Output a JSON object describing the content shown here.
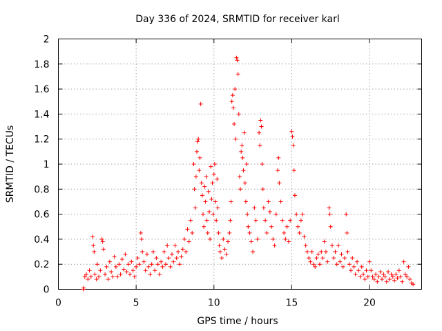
{
  "chart_data": {
    "type": "scatter",
    "title": "Day 336 of 2024, SRMTID for receiver karl",
    "xlabel": "GPS time / hours",
    "ylabel": "SRMTID / TECUs",
    "xlim": [
      0,
      23.35
    ],
    "ylim": [
      0,
      2
    ],
    "xticks": [
      0,
      5,
      10,
      15,
      20
    ],
    "xtick_labels": [
      "0",
      "5",
      "10",
      "15",
      "20"
    ],
    "yticks": [
      0,
      0.2,
      0.4,
      0.6,
      0.8,
      1,
      1.2,
      1.4,
      1.6,
      1.8,
      2
    ],
    "ytick_labels": [
      "0",
      "0.2",
      "0.4",
      "0.6",
      "0.8",
      "1",
      "1.2",
      "1.4",
      "1.6",
      "1.8",
      "2"
    ],
    "grid": true,
    "marker": "+",
    "color": "#ff0000",
    "series": [
      {
        "name": "SRMTID",
        "points": [
          [
            1.6,
            0.0
          ],
          [
            1.62,
            0.01
          ],
          [
            1.7,
            0.1
          ],
          [
            1.8,
            0.12
          ],
          [
            1.9,
            0.08
          ],
          [
            2.0,
            0.15
          ],
          [
            2.1,
            0.1
          ],
          [
            2.2,
            0.42
          ],
          [
            2.25,
            0.35
          ],
          [
            2.3,
            0.3
          ],
          [
            2.35,
            0.12
          ],
          [
            2.45,
            0.08
          ],
          [
            2.5,
            0.2
          ],
          [
            2.6,
            0.1
          ],
          [
            2.7,
            0.15
          ],
          [
            2.8,
            0.4
          ],
          [
            2.85,
            0.38
          ],
          [
            2.9,
            0.32
          ],
          [
            3.0,
            0.12
          ],
          [
            3.1,
            0.18
          ],
          [
            3.2,
            0.08
          ],
          [
            3.3,
            0.22
          ],
          [
            3.4,
            0.14
          ],
          [
            3.5,
            0.1
          ],
          [
            3.6,
            0.26
          ],
          [
            3.7,
            0.18
          ],
          [
            3.8,
            0.1
          ],
          [
            3.9,
            0.2
          ],
          [
            4.0,
            0.12
          ],
          [
            4.1,
            0.24
          ],
          [
            4.2,
            0.16
          ],
          [
            4.3,
            0.28
          ],
          [
            4.4,
            0.14
          ],
          [
            4.5,
            0.2
          ],
          [
            4.6,
            0.12
          ],
          [
            4.7,
            0.22
          ],
          [
            4.8,
            0.15
          ],
          [
            4.9,
            0.1
          ],
          [
            5.0,
            0.18
          ],
          [
            5.1,
            0.25
          ],
          [
            5.2,
            0.2
          ],
          [
            5.3,
            0.45
          ],
          [
            5.35,
            0.4
          ],
          [
            5.4,
            0.3
          ],
          [
            5.5,
            0.22
          ],
          [
            5.6,
            0.15
          ],
          [
            5.7,
            0.28
          ],
          [
            5.8,
            0.18
          ],
          [
            5.9,
            0.12
          ],
          [
            6.0,
            0.2
          ],
          [
            6.1,
            0.3
          ],
          [
            6.2,
            0.15
          ],
          [
            6.3,
            0.25
          ],
          [
            6.4,
            0.2
          ],
          [
            6.5,
            0.12
          ],
          [
            6.6,
            0.22
          ],
          [
            6.7,
            0.18
          ],
          [
            6.8,
            0.3
          ],
          [
            6.9,
            0.2
          ],
          [
            7.0,
            0.35
          ],
          [
            7.1,
            0.25
          ],
          [
            7.2,
            0.18
          ],
          [
            7.3,
            0.28
          ],
          [
            7.4,
            0.22
          ],
          [
            7.5,
            0.35
          ],
          [
            7.6,
            0.25
          ],
          [
            7.7,
            0.3
          ],
          [
            7.8,
            0.2
          ],
          [
            7.9,
            0.26
          ],
          [
            8.0,
            0.32
          ],
          [
            8.1,
            0.4
          ],
          [
            8.2,
            0.3
          ],
          [
            8.3,
            0.48
          ],
          [
            8.4,
            0.38
          ],
          [
            8.5,
            0.55
          ],
          [
            8.6,
            0.45
          ],
          [
            8.7,
            1.0
          ],
          [
            8.75,
            0.8
          ],
          [
            8.8,
            0.65
          ],
          [
            8.85,
            0.9
          ],
          [
            8.9,
            1.1
          ],
          [
            8.95,
            1.18
          ],
          [
            9.0,
            1.2
          ],
          [
            9.05,
            0.95
          ],
          [
            9.1,
            1.05
          ],
          [
            9.15,
            1.48
          ],
          [
            9.2,
            0.85
          ],
          [
            9.25,
            0.75
          ],
          [
            9.3,
            0.6
          ],
          [
            9.35,
            0.5
          ],
          [
            9.4,
            0.82
          ],
          [
            9.45,
            0.7
          ],
          [
            9.5,
            0.9
          ],
          [
            9.55,
            0.55
          ],
          [
            9.6,
            0.45
          ],
          [
            9.65,
            0.78
          ],
          [
            9.7,
            0.62
          ],
          [
            9.75,
            0.4
          ],
          [
            9.8,
            0.98
          ],
          [
            9.85,
            0.72
          ],
          [
            9.9,
            0.85
          ],
          [
            9.95,
            0.6
          ],
          [
            10.0,
            0.92
          ],
          [
            10.05,
            1.0
          ],
          [
            10.1,
            0.7
          ],
          [
            10.15,
            0.55
          ],
          [
            10.2,
            0.88
          ],
          [
            10.25,
            0.65
          ],
          [
            10.3,
            0.45
          ],
          [
            10.35,
            0.35
          ],
          [
            10.4,
            0.3
          ],
          [
            10.5,
            0.25
          ],
          [
            10.6,
            0.4
          ],
          [
            10.7,
            0.32
          ],
          [
            10.8,
            0.28
          ],
          [
            10.9,
            0.38
          ],
          [
            11.0,
            0.45
          ],
          [
            11.05,
            0.55
          ],
          [
            11.1,
            0.7
          ],
          [
            11.15,
            1.5
          ],
          [
            11.2,
            1.55
          ],
          [
            11.25,
            1.45
          ],
          [
            11.3,
            1.32
          ],
          [
            11.35,
            1.6
          ],
          [
            11.4,
            1.2
          ],
          [
            11.45,
            1.85
          ],
          [
            11.5,
            1.83
          ],
          [
            11.55,
            1.72
          ],
          [
            11.6,
            1.4
          ],
          [
            11.65,
            0.9
          ],
          [
            11.7,
            0.8
          ],
          [
            11.75,
            1.1
          ],
          [
            11.8,
            1.15
          ],
          [
            11.85,
            1.05
          ],
          [
            11.9,
            0.95
          ],
          [
            11.95,
            1.25
          ],
          [
            12.0,
            0.85
          ],
          [
            12.05,
            0.7
          ],
          [
            12.1,
            1.0
          ],
          [
            12.15,
            0.6
          ],
          [
            12.2,
            0.5
          ],
          [
            12.3,
            0.45
          ],
          [
            12.4,
            0.38
          ],
          [
            12.5,
            0.3
          ],
          [
            12.6,
            0.65
          ],
          [
            12.7,
            0.55
          ],
          [
            12.8,
            0.4
          ],
          [
            12.9,
            1.25
          ],
          [
            12.95,
            1.15
          ],
          [
            13.0,
            1.35
          ],
          [
            13.05,
            1.3
          ],
          [
            13.1,
            1.0
          ],
          [
            13.15,
            0.8
          ],
          [
            13.2,
            0.65
          ],
          [
            13.3,
            0.55
          ],
          [
            13.4,
            0.45
          ],
          [
            13.5,
            0.7
          ],
          [
            13.6,
            0.62
          ],
          [
            13.7,
            0.5
          ],
          [
            13.8,
            0.4
          ],
          [
            13.9,
            0.35
          ],
          [
            14.0,
            0.6
          ],
          [
            14.1,
            0.95
          ],
          [
            14.15,
            1.05
          ],
          [
            14.2,
            0.85
          ],
          [
            14.3,
            0.7
          ],
          [
            14.4,
            0.55
          ],
          [
            14.5,
            0.45
          ],
          [
            14.6,
            0.4
          ],
          [
            14.7,
            0.5
          ],
          [
            14.8,
            0.38
          ],
          [
            14.9,
            0.55
          ],
          [
            15.0,
            1.26
          ],
          [
            15.05,
            1.22
          ],
          [
            15.1,
            1.15
          ],
          [
            15.15,
            0.95
          ],
          [
            15.2,
            0.75
          ],
          [
            15.3,
            0.6
          ],
          [
            15.4,
            0.5
          ],
          [
            15.5,
            0.45
          ],
          [
            15.6,
            0.55
          ],
          [
            15.7,
            0.6
          ],
          [
            15.8,
            0.42
          ],
          [
            15.9,
            0.35
          ],
          [
            16.0,
            0.3
          ],
          [
            16.1,
            0.25
          ],
          [
            16.2,
            0.22
          ],
          [
            16.3,
            0.3
          ],
          [
            16.4,
            0.2
          ],
          [
            16.5,
            0.18
          ],
          [
            16.6,
            0.25
          ],
          [
            16.7,
            0.28
          ],
          [
            16.8,
            0.2
          ],
          [
            16.9,
            0.3
          ],
          [
            17.0,
            0.25
          ],
          [
            17.1,
            0.38
          ],
          [
            17.2,
            0.3
          ],
          [
            17.3,
            0.22
          ],
          [
            17.4,
            0.65
          ],
          [
            17.45,
            0.6
          ],
          [
            17.5,
            0.5
          ],
          [
            17.6,
            0.35
          ],
          [
            17.7,
            0.25
          ],
          [
            17.8,
            0.3
          ],
          [
            17.9,
            0.2
          ],
          [
            18.0,
            0.35
          ],
          [
            18.1,
            0.22
          ],
          [
            18.2,
            0.28
          ],
          [
            18.3,
            0.18
          ],
          [
            18.4,
            0.25
          ],
          [
            18.5,
            0.6
          ],
          [
            18.55,
            0.45
          ],
          [
            18.6,
            0.3
          ],
          [
            18.7,
            0.2
          ],
          [
            18.8,
            0.15
          ],
          [
            18.9,
            0.25
          ],
          [
            19.0,
            0.18
          ],
          [
            19.1,
            0.12
          ],
          [
            19.2,
            0.22
          ],
          [
            19.3,
            0.15
          ],
          [
            19.4,
            0.1
          ],
          [
            19.5,
            0.18
          ],
          [
            19.6,
            0.12
          ],
          [
            19.7,
            0.08
          ],
          [
            19.8,
            0.15
          ],
          [
            19.9,
            0.1
          ],
          [
            20.0,
            0.22
          ],
          [
            20.1,
            0.15
          ],
          [
            20.2,
            0.1
          ],
          [
            20.3,
            0.08
          ],
          [
            20.4,
            0.12
          ],
          [
            20.5,
            0.06
          ],
          [
            20.6,
            0.1
          ],
          [
            20.7,
            0.14
          ],
          [
            20.8,
            0.08
          ],
          [
            20.9,
            0.12
          ],
          [
            21.0,
            0.1
          ],
          [
            21.1,
            0.06
          ],
          [
            21.2,
            0.14
          ],
          [
            21.3,
            0.08
          ],
          [
            21.4,
            0.12
          ],
          [
            21.5,
            0.1
          ],
          [
            21.6,
            0.07
          ],
          [
            21.7,
            0.12
          ],
          [
            21.8,
            0.09
          ],
          [
            21.9,
            0.15
          ],
          [
            22.0,
            0.1
          ],
          [
            22.1,
            0.06
          ],
          [
            22.2,
            0.22
          ],
          [
            22.3,
            0.12
          ],
          [
            22.4,
            0.1
          ],
          [
            22.5,
            0.18
          ],
          [
            22.6,
            0.08
          ],
          [
            22.7,
            0.05
          ],
          [
            22.8,
            0.04
          ]
        ]
      }
    ]
  }
}
